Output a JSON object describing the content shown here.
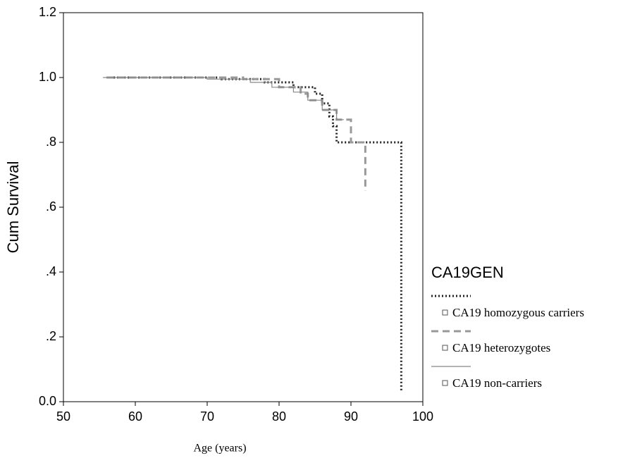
{
  "chart_data": {
    "type": "line",
    "step": true,
    "ylabel": "Cum Survival",
    "xlabel": "Age (years)",
    "legend_title": "CA19GEN",
    "xlim": [
      50,
      100
    ],
    "xticks": [
      50,
      60,
      70,
      80,
      90,
      100
    ],
    "ylim": [
      0,
      1.2
    ],
    "yticks": [
      {
        "value": 0,
        "label": "0.0"
      },
      {
        "value": 0.2,
        "label": ".2"
      },
      {
        "value": 0.4,
        "label": ".4"
      },
      {
        "value": 0.6,
        "label": ".6"
      },
      {
        "value": 0.8,
        "label": ".8"
      },
      {
        "value": 1.0,
        "label": "1.0"
      },
      1.2
    ],
    "series": [
      {
        "name": "CA19 homozygous carriers",
        "color": "#222222",
        "style": "dotted",
        "x": [
          56,
          72,
          78,
          82,
          85,
          86,
          87,
          87.5,
          88,
          97
        ],
        "values": [
          1.0,
          0.995,
          0.985,
          0.97,
          0.95,
          0.92,
          0.88,
          0.85,
          0.8,
          0.03
        ]
      },
      {
        "name": "CA19 heterozygotes",
        "color": "#999999",
        "style": "dashed",
        "x": [
          56,
          75,
          80,
          83,
          84,
          86,
          88,
          90,
          92
        ],
        "values": [
          1.0,
          0.995,
          0.97,
          0.95,
          0.93,
          0.9,
          0.87,
          0.8,
          0.65
        ]
      },
      {
        "name": "CA19 non-carriers",
        "color": "#888888",
        "style": "solid",
        "x": [
          55.5,
          70,
          76,
          79,
          82,
          84,
          86,
          88,
          89
        ],
        "values": [
          1.0,
          0.995,
          0.985,
          0.97,
          0.955,
          0.93,
          0.9,
          0.87,
          0.87
        ]
      }
    ]
  }
}
